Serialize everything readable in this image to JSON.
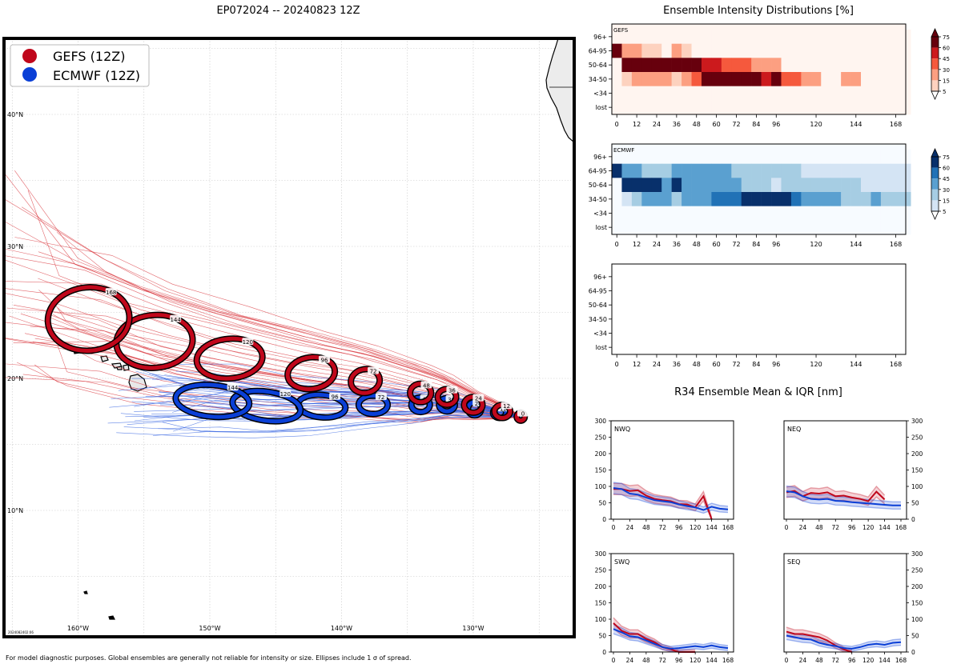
{
  "map": {
    "title": "EP072024 -- 20240823 12Z",
    "legend": [
      {
        "label": "GEFS (12Z)",
        "color": "#c0071b"
      },
      {
        "label": "ECMWF (12Z)",
        "color": "#0a3fd6"
      }
    ],
    "lon_ticks": [
      {
        "lon": -160,
        "label": "160°W"
      },
      {
        "lon": -150,
        "label": "150°W"
      },
      {
        "lon": -140,
        "label": "140°W"
      },
      {
        "lon": -130,
        "label": "130°W"
      }
    ],
    "lat_ticks": [
      {
        "lat": 10,
        "label": "10°N"
      },
      {
        "lat": 20,
        "label": "20°N"
      },
      {
        "lat": 30,
        "label": "30°N"
      },
      {
        "lat": 40,
        "label": "40°N"
      }
    ],
    "stamp": "2024082402:06",
    "footnote": "For model diagnostic purposes. Global ensembles are generally not reliable for intensity or size. Ellipses include 1 σ of spread.",
    "gefs_ellipses": [
      {
        "h": "0",
        "lon": -126.4,
        "lat": 17.1,
        "rx_deg": 0.3,
        "ry_deg": 0.3,
        "tilt": 0
      },
      {
        "h": "12",
        "lon": -127.8,
        "lat": 17.5,
        "rx_deg": 0.6,
        "ry_deg": 0.5,
        "tilt": 0
      },
      {
        "h": "24",
        "lon": -130.0,
        "lat": 18.0,
        "rx_deg": 0.7,
        "ry_deg": 0.6,
        "tilt": 0
      },
      {
        "h": "36",
        "lon": -132.0,
        "lat": 18.6,
        "rx_deg": 0.7,
        "ry_deg": 0.6,
        "tilt": 0
      },
      {
        "h": "48",
        "lon": -134.0,
        "lat": 18.9,
        "rx_deg": 0.8,
        "ry_deg": 0.7,
        "tilt": 0
      },
      {
        "h": "72",
        "lon": -138.2,
        "lat": 19.8,
        "rx_deg": 1.1,
        "ry_deg": 0.9,
        "tilt": -10
      },
      {
        "h": "96",
        "lon": -142.3,
        "lat": 20.4,
        "rx_deg": 1.8,
        "ry_deg": 1.2,
        "tilt": -8
      },
      {
        "h": "120",
        "lon": -148.5,
        "lat": 21.5,
        "rx_deg": 2.5,
        "ry_deg": 1.5,
        "tilt": -5
      },
      {
        "h": "144",
        "lon": -154.2,
        "lat": 22.8,
        "rx_deg": 2.9,
        "ry_deg": 2.0,
        "tilt": -5
      },
      {
        "h": "168",
        "lon": -159.2,
        "lat": 24.5,
        "rx_deg": 3.1,
        "ry_deg": 2.4,
        "tilt": -5
      }
    ],
    "ecmwf_ellipses": [
      {
        "h": "0",
        "lon": -126.4,
        "lat": 17.1,
        "rx_deg": 0.3,
        "ry_deg": 0.3,
        "tilt": 0
      },
      {
        "h": "12",
        "lon": -128.0,
        "lat": 17.4,
        "rx_deg": 0.5,
        "ry_deg": 0.4,
        "tilt": 0
      },
      {
        "h": "24",
        "lon": -129.9,
        "lat": 17.7,
        "rx_deg": 0.5,
        "ry_deg": 0.5,
        "tilt": 0
      },
      {
        "h": "36",
        "lon": -132.0,
        "lat": 18.0,
        "rx_deg": 0.6,
        "ry_deg": 0.5,
        "tilt": 0
      },
      {
        "h": "48",
        "lon": -134.0,
        "lat": 18.0,
        "rx_deg": 0.7,
        "ry_deg": 0.55,
        "tilt": 0
      },
      {
        "h": "72",
        "lon": -137.6,
        "lat": 18.0,
        "rx_deg": 1.1,
        "ry_deg": 0.7,
        "tilt": 0
      },
      {
        "h": "96",
        "lon": -141.5,
        "lat": 17.9,
        "rx_deg": 1.8,
        "ry_deg": 0.85,
        "tilt": 5
      },
      {
        "h": "120",
        "lon": -145.7,
        "lat": 17.9,
        "rx_deg": 2.6,
        "ry_deg": 1.1,
        "tilt": 8
      },
      {
        "h": "144",
        "lon": -149.8,
        "lat": 18.3,
        "rx_deg": 2.8,
        "ry_deg": 1.2,
        "tilt": 5
      }
    ]
  },
  "intensity": {
    "title": "Ensemble Intensity Distributions [%]",
    "rows": [
      "96+",
      "64-95",
      "50-64",
      "34-50",
      "<34",
      "lost"
    ],
    "x_ticks": [
      0,
      12,
      24,
      36,
      48,
      60,
      72,
      84,
      96,
      120,
      144,
      168
    ],
    "step_hours": 6,
    "gefs_label": "GEFS",
    "ecmwf_label": "ECMWF",
    "gefs_grid": [
      [
        0,
        0,
        0,
        0,
        0,
        0,
        0,
        0,
        0,
        0,
        0,
        0,
        0,
        0,
        0,
        0,
        0,
        0,
        0,
        0,
        0,
        0,
        0,
        0,
        0,
        0,
        0,
        0,
        0,
        0
      ],
      [
        80,
        20,
        20,
        10,
        10,
        0,
        20,
        10,
        0,
        0,
        0,
        0,
        0,
        0,
        0,
        0,
        0,
        0,
        0,
        0,
        0,
        0,
        0,
        0,
        0,
        0,
        0,
        0,
        0,
        0
      ],
      [
        0,
        60,
        60,
        60,
        60,
        60,
        60,
        60,
        60,
        55,
        55,
        40,
        40,
        40,
        15,
        15,
        15,
        0,
        0,
        0,
        0,
        0,
        0,
        0,
        0,
        0,
        0,
        0,
        0,
        0
      ],
      [
        0,
        10,
        25,
        25,
        25,
        25,
        10,
        25,
        40,
        60,
        60,
        60,
        60,
        70,
        60,
        55,
        65,
        40,
        30,
        15,
        15,
        0,
        0,
        15,
        15,
        0,
        0,
        0,
        0,
        0
      ],
      [
        0,
        0,
        0,
        0,
        0,
        0,
        0,
        0,
        0,
        0,
        0,
        0,
        0,
        0,
        0,
        0,
        0,
        0,
        0,
        0,
        0,
        0,
        0,
        0,
        0,
        0,
        0,
        0,
        0,
        0
      ],
      [
        0,
        0,
        0,
        0,
        0,
        0,
        0,
        0,
        0,
        0,
        0,
        0,
        0,
        0,
        0,
        0,
        0,
        0,
        0,
        0,
        0,
        0,
        0,
        0,
        0,
        0,
        0,
        0,
        0,
        0
      ]
    ],
    "ecmwf_grid": [
      [
        0,
        0,
        0,
        0,
        0,
        0,
        0,
        0,
        0,
        0,
        0,
        0,
        0,
        0,
        0,
        0,
        0,
        0,
        0,
        0,
        0,
        0,
        0,
        0,
        0,
        0,
        0,
        0,
        0,
        0
      ],
      [
        80,
        30,
        30,
        15,
        15,
        15,
        30,
        30,
        30,
        30,
        30,
        30,
        15,
        15,
        15,
        15,
        15,
        15,
        15,
        5,
        5,
        5,
        5,
        5,
        5,
        5,
        5,
        5,
        5,
        5
      ],
      [
        0,
        60,
        60,
        60,
        60,
        40,
        60,
        40,
        40,
        40,
        40,
        40,
        30,
        15,
        15,
        15,
        5,
        15,
        15,
        15,
        15,
        15,
        15,
        15,
        15,
        5,
        5,
        5,
        5,
        5
      ],
      [
        0,
        5,
        15,
        30,
        30,
        30,
        15,
        30,
        30,
        30,
        45,
        45,
        45,
        60,
        60,
        60,
        60,
        60,
        45,
        30,
        30,
        30,
        30,
        15,
        15,
        15,
        30,
        15,
        15,
        15
      ],
      [
        0,
        0,
        0,
        0,
        0,
        0,
        0,
        0,
        0,
        0,
        0,
        0,
        0,
        0,
        0,
        0,
        0,
        0,
        0,
        0,
        0,
        0,
        0,
        0,
        0,
        0,
        0,
        0,
        0,
        0
      ],
      [
        0,
        0,
        0,
        0,
        0,
        0,
        0,
        0,
        0,
        0,
        0,
        0,
        0,
        0,
        0,
        0,
        0,
        0,
        0,
        0,
        0,
        0,
        0,
        0,
        0,
        0,
        0,
        0,
        0,
        0
      ]
    ],
    "colorbar_ticks": [
      5,
      15,
      30,
      45,
      60,
      75
    ]
  },
  "r34": {
    "title": "R34 Ensemble Mean & IQR [nm]",
    "hours": [
      0,
      12,
      24,
      36,
      48,
      60,
      72,
      84,
      96,
      108,
      120,
      132,
      144,
      156,
      168
    ],
    "x_ticks": [
      0,
      24,
      48,
      72,
      96,
      120,
      144,
      168
    ],
    "y_ticks": [
      0,
      50,
      100,
      150,
      200,
      250,
      300
    ],
    "ylim": [
      0,
      300
    ],
    "panels": [
      {
        "name": "NWQ",
        "gefs": [
          92,
          92,
          86,
          88,
          72,
          62,
          58,
          55,
          46,
          45,
          36,
          70,
          0,
          null,
          null
        ],
        "ecmwf": [
          95,
          92,
          78,
          75,
          66,
          58,
          55,
          52,
          45,
          40,
          36,
          28,
          38,
          32,
          30
        ]
      },
      {
        "name": "NEQ",
        "gefs": [
          82,
          86,
          70,
          80,
          78,
          82,
          70,
          72,
          66,
          62,
          55,
          84,
          60,
          null,
          null
        ],
        "ecmwf": [
          85,
          82,
          70,
          62,
          60,
          62,
          56,
          55,
          52,
          50,
          48,
          46,
          44,
          42,
          42
        ]
      },
      {
        "name": "SWQ",
        "gefs": [
          88,
          65,
          55,
          55,
          40,
          30,
          15,
          8,
          0,
          0,
          0,
          null,
          null,
          null,
          null
        ],
        "ecmwf": [
          70,
          60,
          48,
          45,
          35,
          25,
          15,
          10,
          12,
          15,
          18,
          15,
          20,
          15,
          12
        ]
      },
      {
        "name": "SEQ",
        "gefs": [
          62,
          55,
          55,
          50,
          45,
          35,
          20,
          8,
          0,
          null,
          null,
          null,
          null,
          null,
          null
        ],
        "ecmwf": [
          50,
          45,
          40,
          38,
          28,
          22,
          18,
          12,
          10,
          15,
          22,
          25,
          22,
          28,
          30
        ]
      }
    ]
  }
}
